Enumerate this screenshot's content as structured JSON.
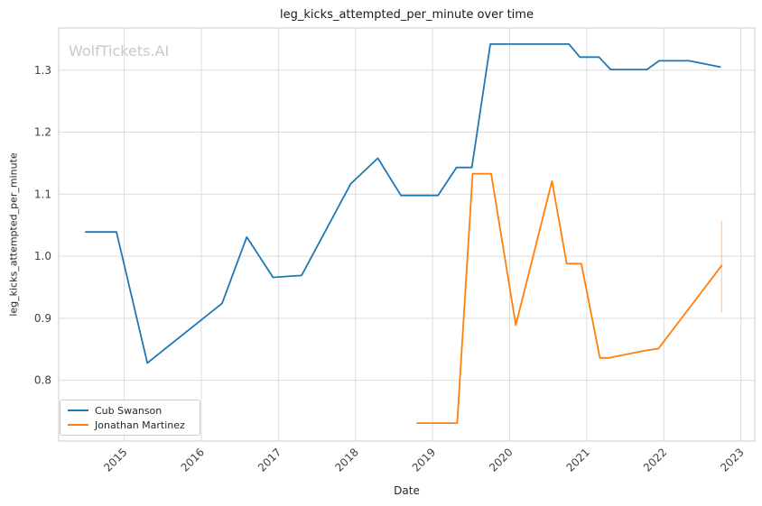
{
  "title": "leg_kicks_attempted_per_minute over time",
  "watermark": "WolfTickets.AI",
  "axes": {
    "x_label": "Date",
    "y_label": "leg_kicks_attempted_per_minute"
  },
  "chart_data": {
    "type": "line",
    "title": "leg_kicks_attempted_per_minute over time",
    "xlabel": "Date",
    "ylabel": "leg_kicks_attempted_per_minute",
    "grid": true,
    "legend_position": "lower left",
    "xlim": [
      2014.15,
      2023.18
    ],
    "ylim": [
      0.702,
      1.368
    ],
    "x_ticks": [
      {
        "value": 2015,
        "label": "2015"
      },
      {
        "value": 2016,
        "label": "2016"
      },
      {
        "value": 2017,
        "label": "2017"
      },
      {
        "value": 2018,
        "label": "2018"
      },
      {
        "value": 2019,
        "label": "2019"
      },
      {
        "value": 2020,
        "label": "2020"
      },
      {
        "value": 2021,
        "label": "2021"
      },
      {
        "value": 2022,
        "label": "2022"
      },
      {
        "value": 2023,
        "label": "2023"
      }
    ],
    "y_ticks": [
      {
        "value": 0.8,
        "label": "0.8"
      },
      {
        "value": 0.9,
        "label": "0.9"
      },
      {
        "value": 1.0,
        "label": "1.0"
      },
      {
        "value": 1.1,
        "label": "1.1"
      },
      {
        "value": 1.2,
        "label": "1.2"
      },
      {
        "value": 1.3,
        "label": "1.3"
      }
    ],
    "colors": {
      "grid": "#dcdcdc",
      "spine": "#cccccc",
      "tick_text": "#404040"
    },
    "series": [
      {
        "name": "Cub Swanson",
        "color": "#1f77b4",
        "points": [
          [
            2014.5,
            1.039
          ],
          [
            2014.9,
            1.039
          ],
          [
            2015.3,
            0.828
          ],
          [
            2016.27,
            0.924
          ],
          [
            2016.59,
            1.031
          ],
          [
            2016.93,
            0.966
          ],
          [
            2017.3,
            0.969
          ],
          [
            2017.94,
            1.117
          ],
          [
            2018.29,
            1.158
          ],
          [
            2018.59,
            1.098
          ],
          [
            2019.07,
            1.098
          ],
          [
            2019.31,
            1.143
          ],
          [
            2019.51,
            1.143
          ],
          [
            2019.75,
            1.342
          ],
          [
            2020.77,
            1.342
          ],
          [
            2020.91,
            1.321
          ],
          [
            2021.16,
            1.321
          ],
          [
            2021.31,
            1.301
          ],
          [
            2021.78,
            1.301
          ],
          [
            2021.94,
            1.315
          ],
          [
            2022.33,
            1.315
          ],
          [
            2022.73,
            1.305
          ]
        ],
        "error_bars": []
      },
      {
        "name": "Jonathan Martinez",
        "color": "#ff7f0e",
        "points": [
          [
            2018.8,
            0.731
          ],
          [
            2019.32,
            0.731
          ],
          [
            2019.52,
            1.133
          ],
          [
            2019.76,
            1.133
          ],
          [
            2020.08,
            0.889
          ],
          [
            2020.55,
            1.121
          ],
          [
            2020.74,
            0.988
          ],
          [
            2020.93,
            0.988
          ],
          [
            2021.17,
            0.836
          ],
          [
            2021.29,
            0.836
          ],
          [
            2021.76,
            0.848
          ],
          [
            2021.93,
            0.851
          ],
          [
            2022.75,
            0.985
          ]
        ],
        "error_bars": [
          {
            "x": 2022.75,
            "low": 0.909,
            "high": 1.057,
            "opacity": 0.33
          }
        ]
      }
    ]
  }
}
